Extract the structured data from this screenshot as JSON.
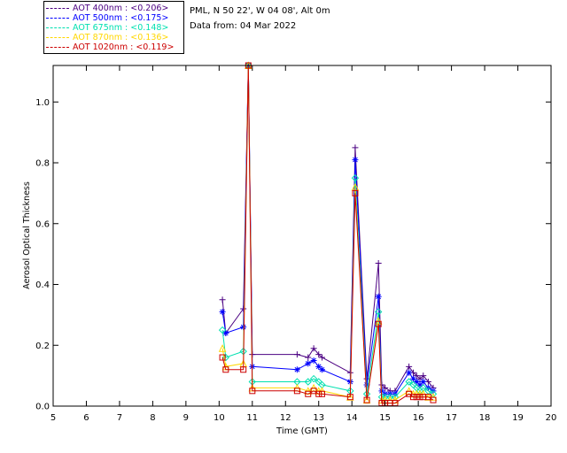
{
  "header": {
    "station": "PML, N 50 22', W 04 08', Alt 0m",
    "date_line": "Data from: 04 Mar 2022"
  },
  "legend": [
    {
      "label": "AOT  400nm : <0.206>",
      "color": "#4b0082"
    },
    {
      "label": "AOT  500nm : <0.175>",
      "color": "#0000ff"
    },
    {
      "label": "AOT  675nm : <0.148>",
      "color": "#00e0b0"
    },
    {
      "label": "AOT  870nm : <0.136>",
      "color": "#ffd700"
    },
    {
      "label": "AOT 1020nm : <0.119>",
      "color": "#cc0000"
    }
  ],
  "chart_data": {
    "type": "line",
    "xlabel": "Time (GMT)",
    "ylabel": "Aerosol Optical Thickness",
    "xlim": [
      5,
      20
    ],
    "ylim": [
      0,
      1.12
    ],
    "xticks": [
      5,
      6,
      7,
      8,
      9,
      10,
      11,
      12,
      13,
      14,
      15,
      16,
      17,
      18,
      19,
      20
    ],
    "yticks": [
      0.0,
      0.2,
      0.4,
      0.6,
      0.8,
      1.0
    ],
    "ytick_labels": [
      "0.0",
      "0.2",
      "0.4",
      "0.6",
      "0.8",
      "1.0"
    ],
    "series": [
      {
        "color": "#4b0082",
        "marker": "plus",
        "points": [
          [
            10.1,
            0.35
          ],
          [
            10.2,
            0.24
          ],
          [
            10.73,
            0.32
          ],
          [
            10.88,
            1.14
          ],
          [
            11.0,
            0.17
          ],
          [
            12.35,
            0.17
          ],
          [
            12.68,
            0.16
          ],
          [
            12.85,
            0.19
          ],
          [
            13.0,
            0.17
          ],
          [
            13.1,
            0.16
          ],
          [
            13.95,
            0.11
          ],
          [
            14.1,
            0.85
          ],
          [
            14.45,
            0.09
          ],
          [
            14.8,
            0.47
          ],
          [
            14.9,
            0.07
          ],
          [
            15.0,
            0.06
          ],
          [
            15.15,
            0.05
          ],
          [
            15.3,
            0.05
          ],
          [
            15.72,
            0.13
          ],
          [
            15.85,
            0.11
          ],
          [
            15.95,
            0.1
          ],
          [
            16.05,
            0.09
          ],
          [
            16.15,
            0.1
          ],
          [
            16.3,
            0.08
          ],
          [
            16.45,
            0.06
          ]
        ]
      },
      {
        "color": "#0000ff",
        "marker": "asterisk",
        "points": [
          [
            10.1,
            0.31
          ],
          [
            10.2,
            0.24
          ],
          [
            10.73,
            0.26
          ],
          [
            10.88,
            1.13
          ],
          [
            11.0,
            0.13
          ],
          [
            12.35,
            0.12
          ],
          [
            12.68,
            0.14
          ],
          [
            12.85,
            0.15
          ],
          [
            13.0,
            0.13
          ],
          [
            13.1,
            0.12
          ],
          [
            13.95,
            0.08
          ],
          [
            14.1,
            0.81
          ],
          [
            14.45,
            0.07
          ],
          [
            14.8,
            0.36
          ],
          [
            14.9,
            0.05
          ],
          [
            15.0,
            0.04
          ],
          [
            15.15,
            0.04
          ],
          [
            15.3,
            0.04
          ],
          [
            15.72,
            0.11
          ],
          [
            15.85,
            0.09
          ],
          [
            15.95,
            0.08
          ],
          [
            16.05,
            0.07
          ],
          [
            16.15,
            0.08
          ],
          [
            16.3,
            0.06
          ],
          [
            16.45,
            0.05
          ]
        ]
      },
      {
        "color": "#00e0b0",
        "marker": "diamond",
        "points": [
          [
            10.1,
            0.25
          ],
          [
            10.2,
            0.16
          ],
          [
            10.73,
            0.18
          ],
          [
            10.88,
            1.12
          ],
          [
            11.0,
            0.08
          ],
          [
            12.35,
            0.08
          ],
          [
            12.68,
            0.08
          ],
          [
            12.85,
            0.09
          ],
          [
            13.0,
            0.08
          ],
          [
            13.1,
            0.07
          ],
          [
            13.95,
            0.05
          ],
          [
            14.1,
            0.75
          ],
          [
            14.45,
            0.04
          ],
          [
            14.8,
            0.31
          ],
          [
            14.9,
            0.03
          ],
          [
            15.0,
            0.03
          ],
          [
            15.15,
            0.03
          ],
          [
            15.3,
            0.03
          ],
          [
            15.72,
            0.08
          ],
          [
            15.85,
            0.07
          ],
          [
            15.95,
            0.06
          ],
          [
            16.05,
            0.05
          ],
          [
            16.15,
            0.06
          ],
          [
            16.3,
            0.05
          ],
          [
            16.45,
            0.04
          ]
        ]
      },
      {
        "color": "#ffd700",
        "marker": "triangle",
        "points": [
          [
            10.1,
            0.19
          ],
          [
            10.2,
            0.13
          ],
          [
            10.73,
            0.14
          ],
          [
            10.88,
            1.12
          ],
          [
            11.0,
            0.06
          ],
          [
            12.35,
            0.06
          ],
          [
            12.68,
            0.05
          ],
          [
            12.85,
            0.06
          ],
          [
            13.0,
            0.05
          ],
          [
            13.1,
            0.05
          ],
          [
            13.95,
            0.03
          ],
          [
            14.1,
            0.72
          ],
          [
            14.45,
            0.02
          ],
          [
            14.8,
            0.28
          ],
          [
            14.9,
            0.02
          ],
          [
            15.0,
            0.02
          ],
          [
            15.15,
            0.02
          ],
          [
            15.3,
            0.02
          ],
          [
            15.72,
            0.05
          ],
          [
            15.85,
            0.04
          ],
          [
            15.95,
            0.04
          ],
          [
            16.05,
            0.04
          ],
          [
            16.15,
            0.04
          ],
          [
            16.3,
            0.03
          ],
          [
            16.45,
            0.03
          ]
        ]
      },
      {
        "color": "#cc0000",
        "marker": "square",
        "points": [
          [
            10.1,
            0.16
          ],
          [
            10.2,
            0.12
          ],
          [
            10.73,
            0.12
          ],
          [
            10.88,
            1.13
          ],
          [
            11.0,
            0.05
          ],
          [
            12.35,
            0.05
          ],
          [
            12.68,
            0.04
          ],
          [
            12.85,
            0.05
          ],
          [
            13.0,
            0.04
          ],
          [
            13.1,
            0.04
          ],
          [
            13.95,
            0.03
          ],
          [
            14.1,
            0.7
          ],
          [
            14.45,
            0.02
          ],
          [
            14.8,
            0.27
          ],
          [
            14.9,
            0.01
          ],
          [
            15.0,
            0.01
          ],
          [
            15.15,
            0.01
          ],
          [
            15.3,
            0.01
          ],
          [
            15.72,
            0.04
          ],
          [
            15.85,
            0.03
          ],
          [
            15.95,
            0.03
          ],
          [
            16.05,
            0.03
          ],
          [
            16.15,
            0.03
          ],
          [
            16.3,
            0.03
          ],
          [
            16.45,
            0.02
          ]
        ]
      }
    ]
  }
}
